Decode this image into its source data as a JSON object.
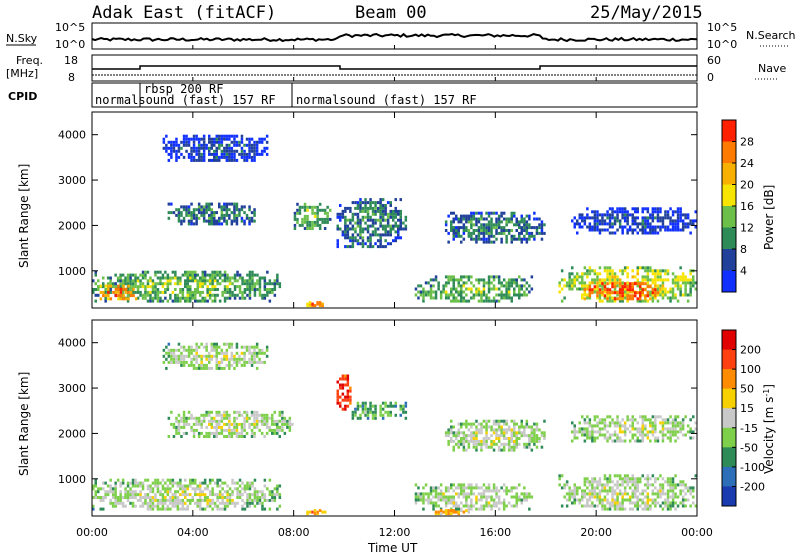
{
  "header": {
    "site": "Adak East (fitACF)",
    "beam": "Beam 00",
    "date": "25/May/2015"
  },
  "strip_panels": {
    "nsky_label": "N.Sky",
    "nsky_ticks": [
      "10^5",
      "10^0"
    ],
    "nsearch_label": "N.Search",
    "nsearch_ticks": [
      "10^5",
      "10^0"
    ],
    "freq_label_1": "Freq.",
    "freq_label_2": "[MHz]",
    "freq_ticks": [
      "18",
      "8"
    ],
    "nave_label": "Nave",
    "nave_ticks": [
      "60",
      "0"
    ],
    "cpid_label": "CPID"
  },
  "cpid_segments": [
    {
      "label": "normalsound (fast) 157 RF",
      "start_hour": 0,
      "end_hour": 8
    },
    {
      "label": "rbsp 200 RF",
      "start_hour": 1.95,
      "end_hour": 2.0
    },
    {
      "label": "normalsound (fast) 157 RF",
      "start_hour": 8,
      "end_hour": 24
    }
  ],
  "axes": {
    "xlabel": "Time UT",
    "xticks": [
      "00:00",
      "04:00",
      "08:00",
      "12:00",
      "16:00",
      "20:00",
      "00:00"
    ],
    "ylabel": "Slant Range [km]",
    "yticks": [
      "1000",
      "2000",
      "3000",
      "4000"
    ]
  },
  "power_scale": {
    "label": "Power [dB]",
    "ticks": [
      "4",
      "8",
      "12",
      "16",
      "20",
      "24",
      "28"
    ],
    "colors": [
      "#1030ff",
      "#20409a",
      "#2e8b57",
      "#6cc04a",
      "#f7e400",
      "#f7b000",
      "#ff7a00",
      "#ff2000"
    ]
  },
  "velocity_scale": {
    "label": "Velocity [m s",
    "label_sup": "-1",
    "label_end": "]",
    "ticks": [
      "200",
      "100",
      "50",
      "15",
      "-15",
      "-50",
      "-100",
      "-200"
    ],
    "colors": [
      "#1a3ab0",
      "#2c6fb8",
      "#2e8b57",
      "#7ed04a",
      "#c8c8c8",
      "#f7d000",
      "#ff8c00",
      "#ff4010",
      "#e00000"
    ]
  },
  "chart_data": {
    "type": "heatmap",
    "x_range_hours": [
      0,
      24
    ],
    "y_range_km": [
      180,
      4500
    ],
    "panels": [
      {
        "name": "power",
        "regions": [
          {
            "t0": 0.0,
            "t1": 7.5,
            "r0": 300,
            "r1": 1000,
            "level": 3
          },
          {
            "t0": 0.3,
            "t1": 1.8,
            "r0": 350,
            "r1": 700,
            "level": 6
          },
          {
            "t0": 3.0,
            "t1": 6.5,
            "r0": 2000,
            "r1": 2500,
            "level": 2
          },
          {
            "t0": 2.8,
            "t1": 7.0,
            "r0": 3400,
            "r1": 4000,
            "level": 1
          },
          {
            "t0": 8.0,
            "t1": 9.5,
            "r0": 1900,
            "r1": 2500,
            "level": 3
          },
          {
            "t0": 9.7,
            "t1": 12.5,
            "r0": 1500,
            "r1": 2600,
            "level": 2
          },
          {
            "t0": 8.5,
            "t1": 9.3,
            "r0": 200,
            "r1": 300,
            "level": 6
          },
          {
            "t0": 12.8,
            "t1": 17.5,
            "r0": 300,
            "r1": 900,
            "level": 3
          },
          {
            "t0": 14.0,
            "t1": 18.0,
            "r0": 1600,
            "r1": 2300,
            "level": 2
          },
          {
            "t0": 18.5,
            "t1": 24.0,
            "r0": 300,
            "r1": 1100,
            "level": 4
          },
          {
            "t0": 19.5,
            "t1": 22.5,
            "r0": 350,
            "r1": 750,
            "level": 7
          },
          {
            "t0": 19.0,
            "t1": 24.0,
            "r0": 1800,
            "r1": 2400,
            "level": 1
          }
        ]
      },
      {
        "name": "velocity",
        "regions": [
          {
            "t0": 0.0,
            "t1": 7.5,
            "r0": 300,
            "r1": 1000,
            "level": 4
          },
          {
            "t0": 3.0,
            "t1": 8.0,
            "r0": 1900,
            "r1": 2500,
            "level": 4
          },
          {
            "t0": 2.8,
            "t1": 7.0,
            "r0": 3400,
            "r1": 4000,
            "level": 4
          },
          {
            "t0": 9.7,
            "t1": 10.3,
            "r0": 2500,
            "r1": 3300,
            "level": 8
          },
          {
            "t0": 10.3,
            "t1": 12.5,
            "r0": 2300,
            "r1": 2700,
            "level": 3
          },
          {
            "t0": 8.5,
            "t1": 9.3,
            "r0": 200,
            "r1": 300,
            "level": 6
          },
          {
            "t0": 12.8,
            "t1": 17.5,
            "r0": 300,
            "r1": 900,
            "level": 4
          },
          {
            "t0": 13.5,
            "t1": 15.0,
            "r0": 200,
            "r1": 300,
            "level": 6
          },
          {
            "t0": 14.0,
            "t1": 18.0,
            "r0": 1600,
            "r1": 2300,
            "level": 4
          },
          {
            "t0": 18.5,
            "t1": 24.0,
            "r0": 300,
            "r1": 1100,
            "level": 4
          },
          {
            "t0": 19.0,
            "t1": 24.0,
            "r0": 1800,
            "r1": 2400,
            "level": 4
          }
        ]
      }
    ]
  }
}
